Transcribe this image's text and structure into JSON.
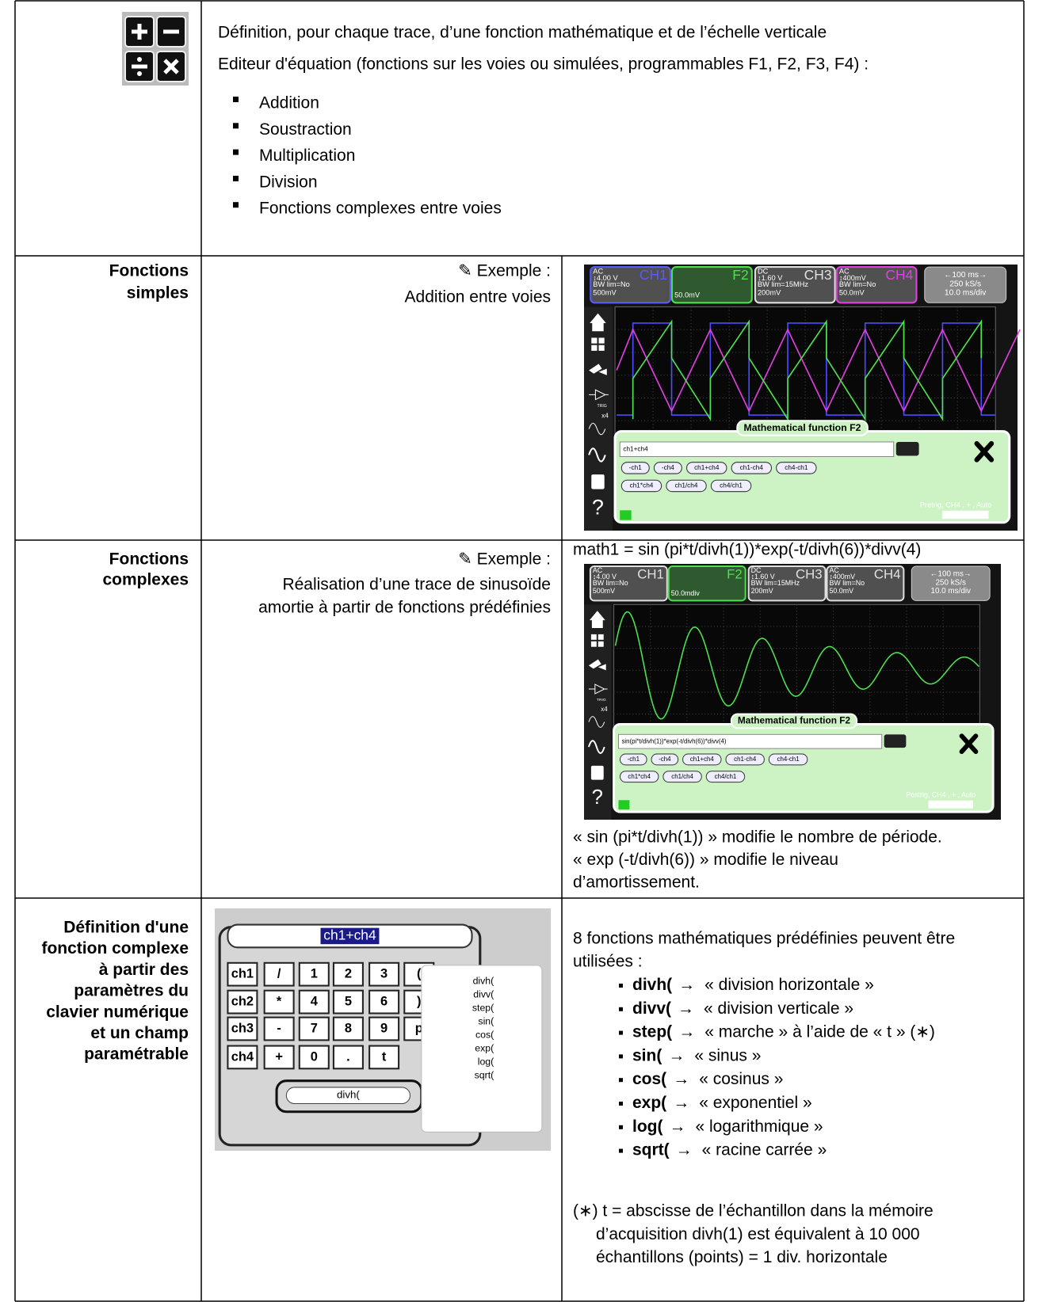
{
  "header": {
    "lines": [
      "Définition, pour chaque trace, d’une fonction mathématique et de l’échelle verticale",
      "Editeur d'équation (fonctions sur les voies ou simulées, programmables F1, F2, F3, F4) :"
    ],
    "list": [
      "Addition",
      "Soustraction",
      "Multiplication",
      "Division",
      "Fonctions complexes entre voies"
    ]
  },
  "row_simple": {
    "label": [
      "Fonctions",
      "simples"
    ],
    "example": "✎ Exemple :",
    "caption": [
      "Addition entre voies"
    ],
    "scope": {
      "channels": [
        {
          "lines": [
            "AC",
            "↕4.00 V",
            "BW lim=No",
            "500mV"
          ],
          "name": "CH1",
          "color": "#5a5aff"
        },
        {
          "lines": [
            "50.0mV"
          ],
          "name": "F2",
          "color": "#4ee04e"
        },
        {
          "lines": [
            "DC",
            "↕1.60 V",
            "BW lim=15MHz",
            "200mV"
          ],
          "name": "CH3",
          "color": "#e0e0e0"
        },
        {
          "lines": [
            "AC",
            "↕400mV",
            "BW lim=No",
            "50.0mV"
          ],
          "name": "CH4",
          "color": "#e040e0"
        }
      ],
      "timebase": [
        "←100 ms→",
        "250 kS/s",
        "10.0 ms/div"
      ],
      "sidebar": [
        "TRIG",
        "x4",
        "?"
      ],
      "dialog_title": "Mathematical function F2",
      "equation": "ch1+ch4",
      "buttons": [
        [
          "-ch1",
          "-ch4",
          "ch1+ch4",
          "ch1-ch4",
          "ch4-ch1"
        ],
        [
          "ch1*ch4",
          "ch1/ch4",
          "ch4/ch1"
        ]
      ],
      "status": "Pretrig, CH4 , + , Auto"
    }
  },
  "row_complex": {
    "label": [
      "Fonctions",
      "complexes"
    ],
    "example": "✎ Exemple :",
    "caption": [
      "Réalisation d’une trace de sinusoïde",
      "amortie à partir de fonctions prédéfinies"
    ],
    "formula": "math1 = sin (pi*t/divh(1))*exp(-t/divh(6))*divv(4)",
    "scope": {
      "channels": [
        {
          "lines": [
            "AC",
            "↕4.00 V",
            "BW lim=No",
            "500mV"
          ],
          "name": "CH1",
          "color": "#e0e0e0"
        },
        {
          "lines": [
            "50.0mdiv"
          ],
          "name": "F2",
          "color": "#4ee04e"
        },
        {
          "lines": [
            "DC",
            "↕1.60 V",
            "BW lim=15MHz",
            "200mV"
          ],
          "name": "CH3",
          "color": "#e0e0e0"
        },
        {
          "lines": [
            "AC",
            "↕400mV",
            "BW lim=No",
            "50.0mV"
          ],
          "name": "CH4",
          "color": "#e0e0e0"
        }
      ],
      "timebase": [
        "←100 ms→",
        "250 kS/s",
        "10.0 ms/div"
      ],
      "sidebar": [
        "TRIG",
        "x4",
        "?"
      ],
      "dialog_title": "Mathematical function F2",
      "equation": "sin(pi*t/divh(1))*exp(-t/divh(6))*divv(4)",
      "buttons": [
        [
          "-ch1",
          "-ch4",
          "ch1+ch4",
          "ch1-ch4",
          "ch4-ch1"
        ],
        [
          "ch1*ch4",
          "ch1/ch4",
          "ch4/ch1"
        ]
      ],
      "status": "Postrig, CH4 , + , Auto"
    },
    "notes": [
      "« sin (pi*t/divh(1)) » modifie le nombre de période.",
      "« exp (-t/divh(6)) » modifie le niveau",
      "d’amortissement."
    ]
  },
  "row_keypad": {
    "label": [
      "Définition d'une",
      "fonction complexe",
      "à partir des",
      "paramètres du",
      "clavier numérique",
      "et un champ",
      "paramétrable"
    ],
    "keypad": {
      "display": "ch1+ch4",
      "keys": [
        [
          "ch1",
          "/",
          "1",
          "2",
          "3",
          "("
        ],
        [
          "ch2",
          "*",
          "4",
          "5",
          "6",
          ")"
        ],
        [
          "ch3",
          "-",
          "7",
          "8",
          "9",
          "p"
        ],
        [
          "ch4",
          "+",
          "0",
          ".",
          "t"
        ]
      ],
      "field": "divh(",
      "menu": [
        "divh(",
        "divv(",
        "step(",
        "sin(",
        "cos(",
        "exp(",
        "log(",
        "sqrt("
      ]
    },
    "intro": [
      "8 fonctions mathématiques prédéfinies peuvent être",
      "utilisées :"
    ],
    "functions": [
      {
        "name": "divh(",
        "arrow": "→",
        "desc": "« division horizontale »"
      },
      {
        "name": "divv(",
        "arrow": "→",
        "desc": "« division verticale »"
      },
      {
        "name": "step(",
        "arrow": "→",
        "desc": "« marche » à l’aide de « t » (∗)"
      },
      {
        "name": "sin(",
        "arrow": "→",
        "desc": "« sinus »"
      },
      {
        "name": "cos(",
        "arrow": "→",
        "desc": "« cosinus »"
      },
      {
        "name": "exp(",
        "arrow": "→",
        "desc": "« exponentiel »"
      },
      {
        "name": "log(",
        "arrow": "→",
        "desc": "« logarithmique »"
      },
      {
        "name": "sqrt(",
        "arrow": "→",
        "desc": "« racine carrée »"
      }
    ],
    "note": [
      "(∗) t = abscisse de l’échantillon dans la mémoire",
      "d’acquisition divh(1) est équivalent à 10 000",
      "échantillons (points) = 1 div. horizontale"
    ]
  }
}
